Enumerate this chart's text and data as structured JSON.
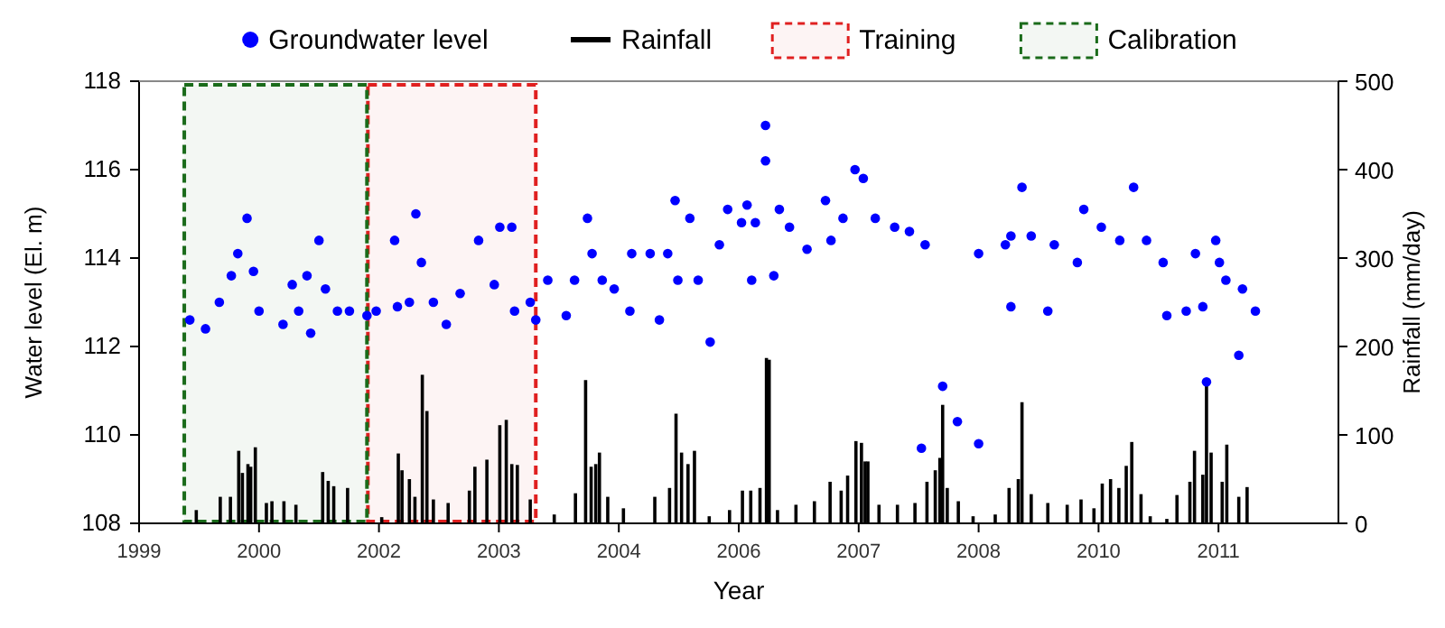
{
  "chart_data": {
    "type": "scatter",
    "xlabel": "Year",
    "ylabel": "Water level (El. m)",
    "y2label": "Rainfall (mm/day)",
    "legend": "top",
    "marker": "circle",
    "xlim": [
      1999.15,
      2012.15
    ],
    "xticks": [
      {
        "value": 1999.15,
        "label": "1999"
      },
      {
        "value": 2000.45,
        "label": "2000"
      },
      {
        "value": 2001.75,
        "label": "2002"
      },
      {
        "value": 2003.05,
        "label": "2003"
      },
      {
        "value": 2004.35,
        "label": "2004"
      },
      {
        "value": 2005.65,
        "label": "2006"
      },
      {
        "value": 2006.95,
        "label": "2007"
      },
      {
        "value": 2008.25,
        "label": "2008"
      },
      {
        "value": 2009.55,
        "label": "2010"
      },
      {
        "value": 2010.85,
        "label": "2011"
      }
    ],
    "ylim": [
      108,
      118
    ],
    "yticks": [
      108,
      110,
      112,
      114,
      116,
      118
    ],
    "y2lim": [
      0,
      500
    ],
    "y2ticks": [
      0,
      100,
      200,
      300,
      400,
      500
    ],
    "bands": [
      {
        "axis": "x",
        "from": 2001.63,
        "to": 2003.45,
        "label": "Training",
        "color": "#e02020"
      },
      {
        "axis": "x",
        "from": 1999.64,
        "to": 2001.62,
        "label": "Calibration",
        "color": "#1a6b1a"
      }
    ],
    "series": [
      {
        "name": "Groundwater level",
        "color": "#0000ff",
        "x": [
          1999.7,
          1999.87,
          2000.02,
          2000.15,
          2000.22,
          2000.32,
          2000.39,
          2000.45,
          2000.71,
          2000.81,
          2000.88,
          2000.97,
          2001.01,
          2001.1,
          2001.17,
          2001.3,
          2001.43,
          2001.62,
          2001.72,
          2001.92,
          2001.95,
          2002.08,
          2002.15,
          2002.21,
          2002.34,
          2002.48,
          2002.63,
          2002.83,
          2003.0,
          2003.06,
          2003.19,
          2003.22,
          2003.39,
          2003.45,
          2003.58,
          2003.78,
          2003.87,
          2004.01,
          2004.06,
          2004.17,
          2004.3,
          2004.47,
          2004.49,
          2004.69,
          2004.79,
          2004.88,
          2004.96,
          2004.99,
          2005.12,
          2005.21,
          2005.34,
          2005.44,
          2005.53,
          2005.68,
          2005.74,
          2005.79,
          2005.83,
          2005.94,
          2005.94,
          2006.03,
          2006.09,
          2006.2,
          2006.39,
          2006.59,
          2006.65,
          2006.78,
          2006.91,
          2007.0,
          2007.13,
          2007.34,
          2007.5,
          2007.67,
          2007.63,
          2007.86,
          2008.02,
          2008.25,
          2008.25,
          2008.54,
          2008.6,
          2008.72,
          2008.82,
          2009.0,
          2009.07,
          2009.32,
          2009.39,
          2009.58,
          2009.78,
          2009.93,
          2010.07,
          2010.25,
          2010.29,
          2010.5,
          2010.6,
          2010.68,
          2010.72,
          2010.82,
          2010.86,
          2010.93,
          2011.07,
          2011.11,
          2011.25,
          2008.6
        ],
        "values": [
          112.6,
          112.4,
          113.0,
          113.6,
          114.1,
          114.9,
          113.7,
          112.8,
          112.5,
          113.4,
          112.8,
          113.6,
          112.3,
          114.4,
          113.3,
          112.8,
          112.8,
          112.7,
          112.8,
          114.4,
          112.9,
          113.0,
          115.0,
          113.9,
          113.0,
          112.5,
          113.2,
          114.4,
          113.4,
          114.7,
          114.7,
          112.8,
          113.0,
          112.6,
          113.5,
          112.7,
          113.5,
          114.9,
          114.1,
          113.5,
          113.3,
          112.8,
          114.1,
          114.1,
          112.6,
          114.1,
          115.3,
          113.5,
          114.9,
          113.5,
          112.1,
          114.3,
          115.1,
          114.8,
          115.2,
          113.5,
          114.8,
          117.0,
          116.2,
          113.6,
          115.1,
          114.7,
          114.2,
          115.3,
          114.4,
          114.9,
          116.0,
          115.8,
          114.9,
          114.7,
          114.6,
          114.3,
          109.7,
          111.1,
          110.3,
          109.8,
          114.1,
          114.3,
          114.5,
          115.6,
          114.5,
          112.8,
          114.3,
          113.9,
          115.1,
          114.7,
          114.4,
          115.6,
          114.4,
          113.9,
          112.7,
          112.8,
          114.1,
          112.9,
          111.2,
          114.4,
          113.9,
          113.5,
          111.8,
          113.3,
          112.8,
          112.9
        ]
      },
      {
        "name": "Rainfall",
        "type": "bar",
        "axis": "y2",
        "color": "#000000",
        "x": [
          1999.77,
          2000.03,
          2000.14,
          2000.23,
          2000.27,
          2000.33,
          2000.36,
          2000.41,
          2000.53,
          2000.59,
          2000.72,
          2000.85,
          2001.14,
          2001.2,
          2001.26,
          2001.41,
          2001.78,
          2001.96,
          2002.0,
          2002.08,
          2002.14,
          2002.22,
          2002.27,
          2002.34,
          2002.5,
          2002.73,
          2002.79,
          2002.92,
          2003.06,
          2003.13,
          2003.19,
          2003.25,
          2003.39,
          2003.65,
          2003.88,
          2003.99,
          2004.05,
          2004.1,
          2004.14,
          2004.23,
          2004.4,
          2004.74,
          2004.9,
          2004.97,
          2005.03,
          2005.1,
          2005.17,
          2005.33,
          2005.55,
          2005.69,
          2005.78,
          2005.88,
          2005.95,
          2005.98,
          2006.07,
          2006.27,
          2006.47,
          2006.64,
          2006.76,
          2006.83,
          2006.92,
          2006.98,
          2007.02,
          2007.05,
          2007.17,
          2007.37,
          2007.56,
          2007.69,
          2007.78,
          2007.83,
          2007.86,
          2007.91,
          2008.03,
          2008.19,
          2008.43,
          2008.58,
          2008.68,
          2008.72,
          2008.82,
          2009.0,
          2009.21,
          2009.36,
          2009.5,
          2009.59,
          2009.68,
          2009.77,
          2009.85,
          2009.91,
          2010.01,
          2010.11,
          2010.29,
          2010.4,
          2010.54,
          2010.59,
          2010.68,
          2010.72,
          2010.77,
          2010.89,
          2010.94,
          2011.07,
          2011.16,
          2011.25
        ],
        "values": [
          15,
          30,
          30,
          82,
          57,
          67,
          64,
          86,
          23,
          25,
          25,
          21,
          58,
          48,
          42,
          40,
          7,
          79,
          60,
          50,
          30,
          168,
          127,
          27,
          23,
          37,
          64,
          72,
          111,
          117,
          67,
          66,
          27,
          10,
          34,
          162,
          64,
          67,
          80,
          30,
          17,
          30,
          40,
          124,
          80,
          67,
          82,
          8,
          15,
          37,
          37,
          40,
          187,
          185,
          15,
          21,
          25,
          47,
          37,
          54,
          93,
          91,
          70,
          70,
          21,
          21,
          23,
          47,
          60,
          74,
          134,
          40,
          25,
          8,
          10,
          40,
          50,
          137,
          33,
          23,
          21,
          27,
          17,
          45,
          50,
          40,
          65,
          92,
          33,
          8,
          5,
          32,
          47,
          82,
          55,
          157,
          80,
          47,
          89,
          30,
          41,
          1
        ]
      }
    ]
  }
}
